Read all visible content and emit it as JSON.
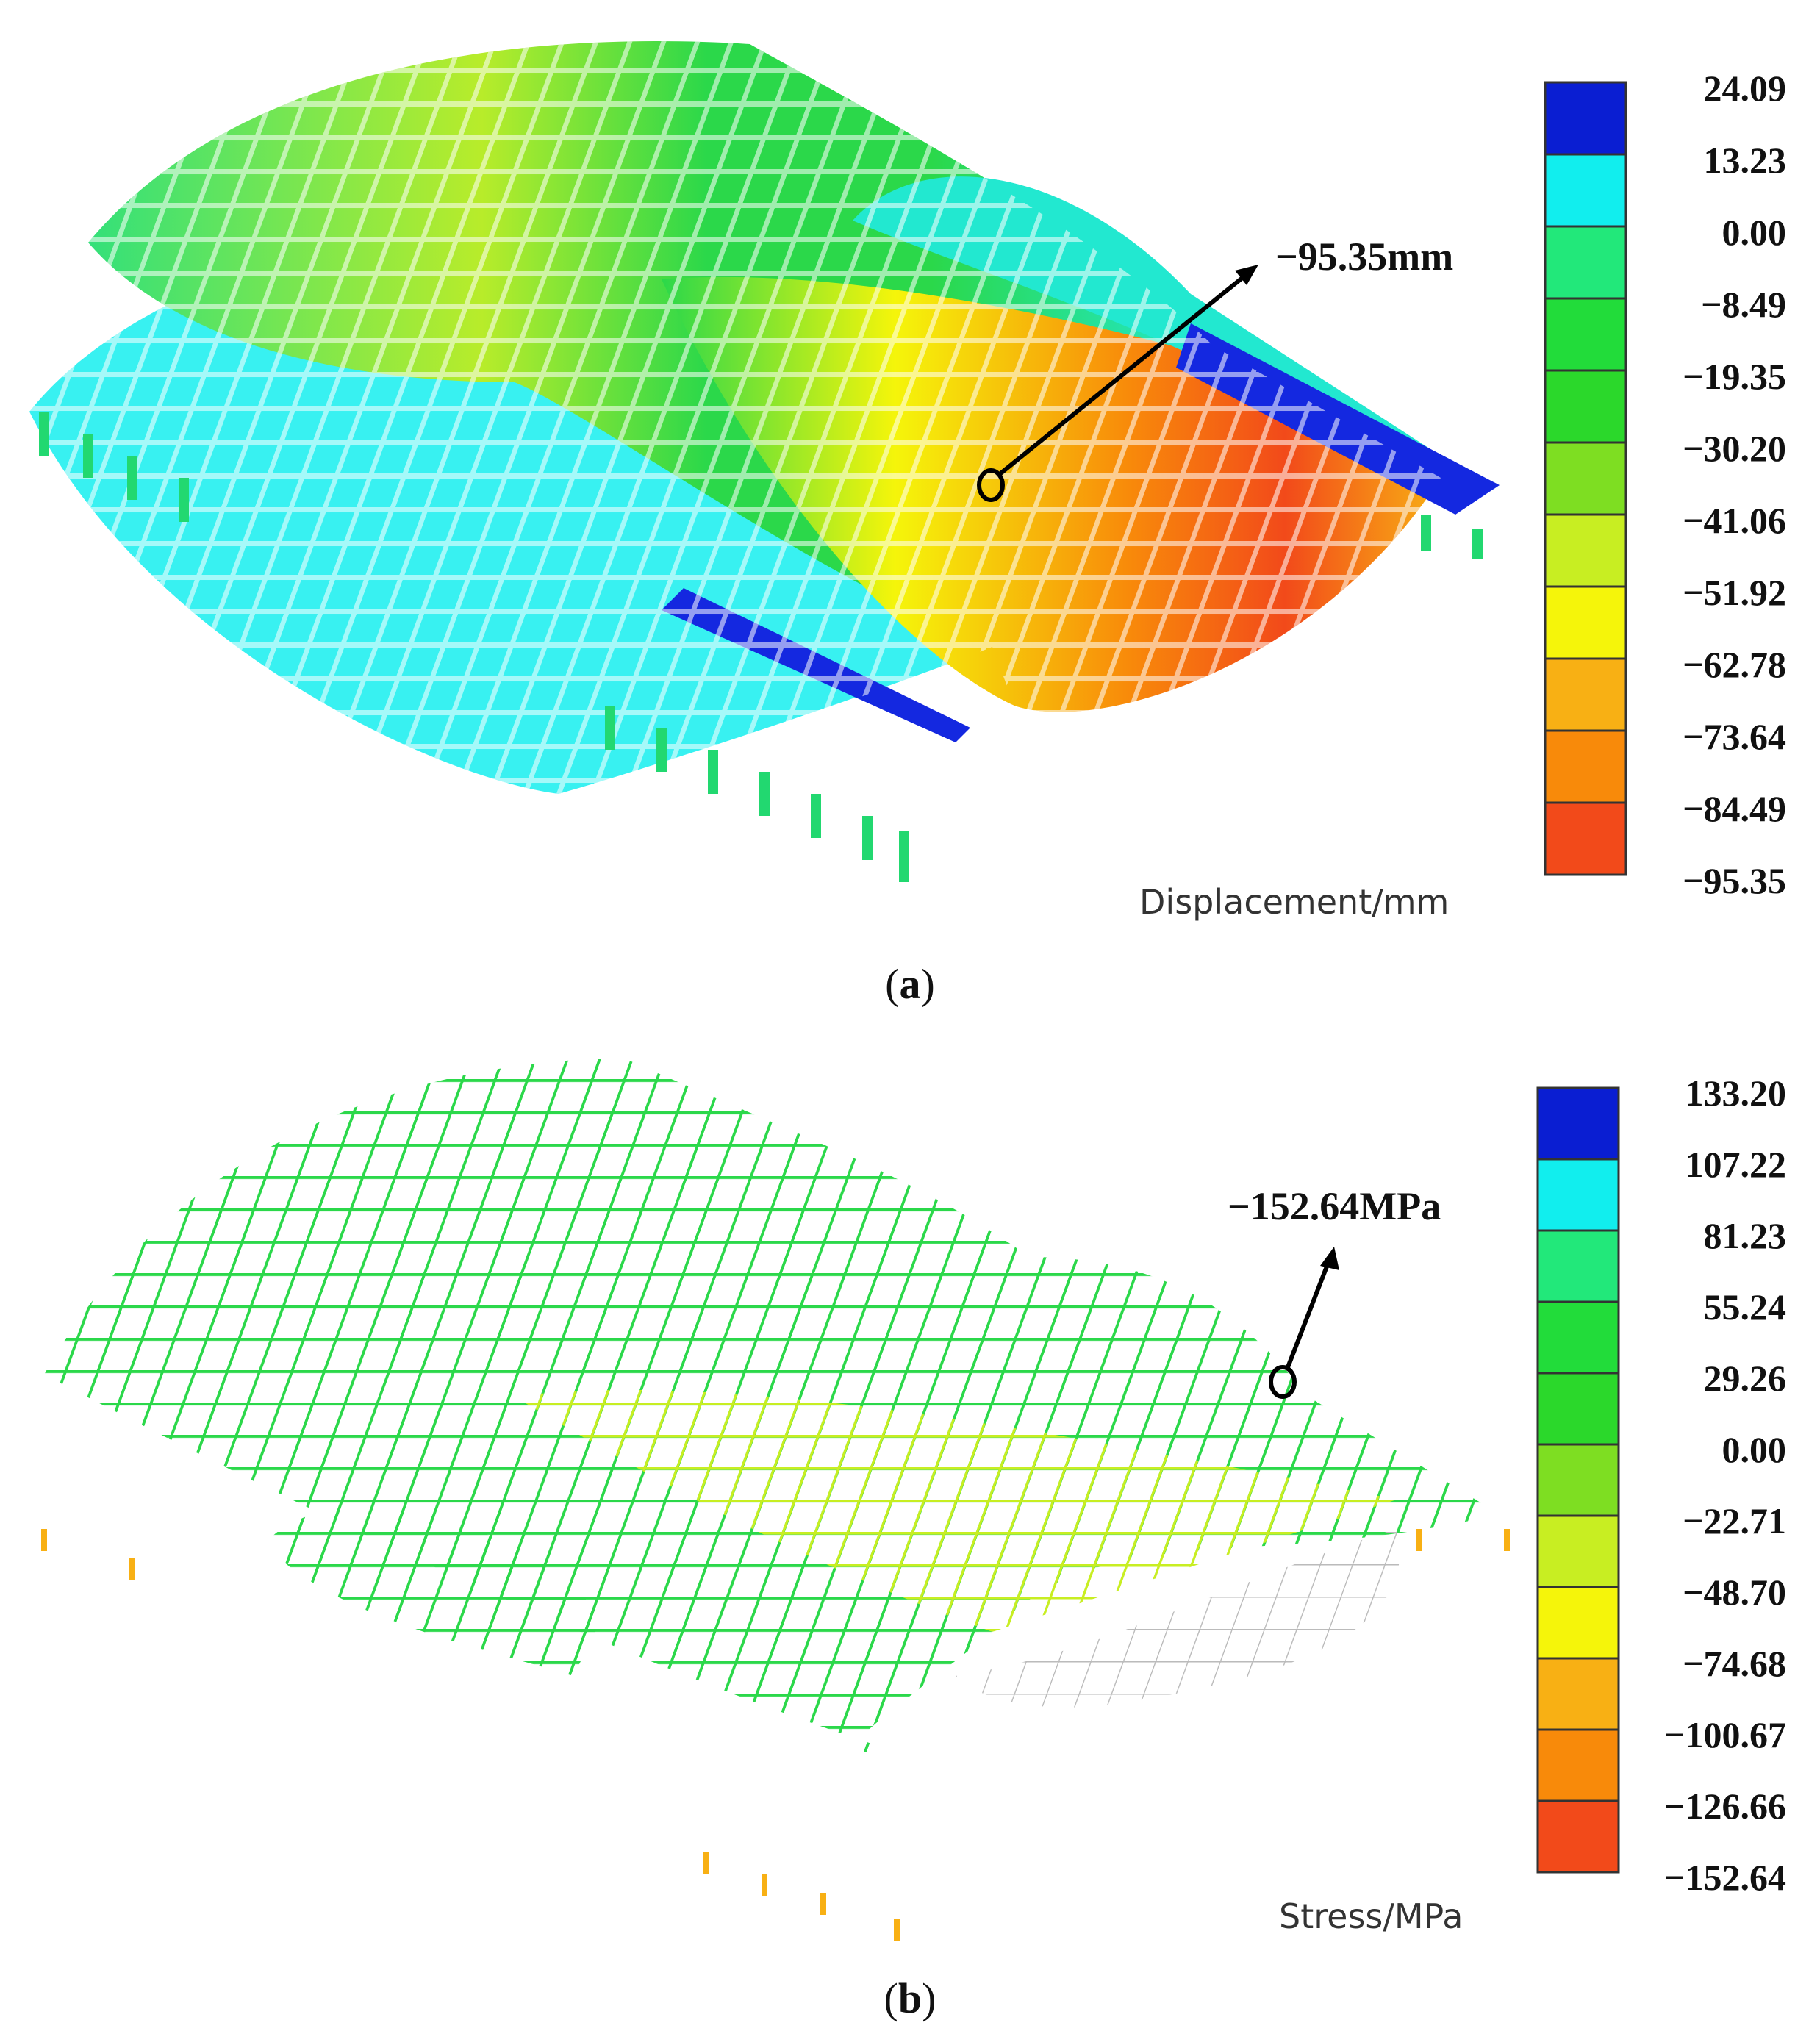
{
  "panel_a": {
    "caption_letter": "a",
    "callout": "−95.35mm",
    "unit": "Displacement/mm",
    "legend": [
      "24.09",
      "13.23",
      "0.00",
      "−8.49",
      "−19.35",
      "−30.20",
      "−41.06",
      "−51.92",
      "−62.78",
      "−73.64",
      "−84.49",
      "−95.35"
    ],
    "legend_colors": [
      "#0a1ed2",
      "#11eeee",
      "#22e87a",
      "#22dc3a",
      "#2bd82b",
      "#7ede22",
      "#c8ee22",
      "#f5f50a",
      "#f8b014",
      "#f88a0a",
      "#f24a1a"
    ]
  },
  "panel_b": {
    "caption_letter": "b",
    "callout": "−152.64MPa",
    "unit": "Stress/MPa",
    "legend": [
      "133.20",
      "107.22",
      "81.23",
      "55.24",
      "29.26",
      "0.00",
      "−22.71",
      "−48.70",
      "−74.68",
      "−100.67",
      "−126.66",
      "−152.64"
    ],
    "legend_colors": [
      "#0a1ed2",
      "#11eeee",
      "#22e87a",
      "#22dc3a",
      "#2bd82b",
      "#7ede22",
      "#c8ee22",
      "#f5f50a",
      "#f8b014",
      "#f88a0a",
      "#f24a1a"
    ]
  }
}
